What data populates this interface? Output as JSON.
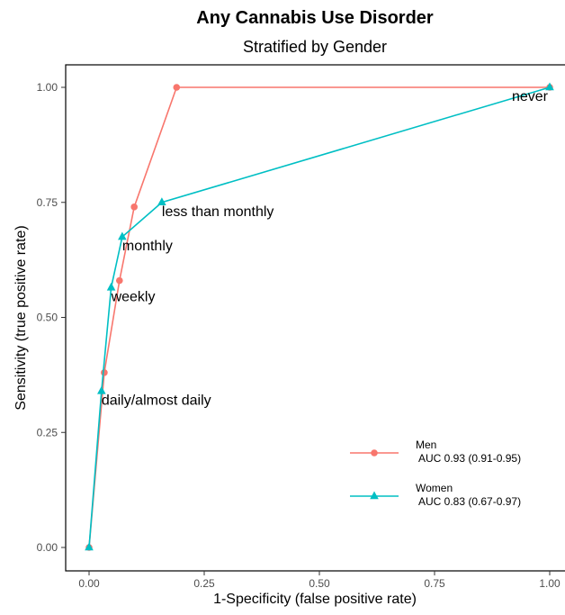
{
  "chart_data": {
    "type": "line",
    "title": "Any Cannabis Use Disorder",
    "subtitle": "Stratified by Gender",
    "xlabel": "1-Specificity (false positive rate)",
    "ylabel": "Sensitivity (true positive rate)",
    "xlim": [
      0,
      1
    ],
    "ylim": [
      0,
      1
    ],
    "x_ticks": [
      "0.00",
      "0.25",
      "0.50",
      "0.75",
      "1.00"
    ],
    "y_ticks": [
      "0.00",
      "0.25",
      "0.50",
      "0.75",
      "1.00"
    ],
    "grid": false,
    "legend_position": "bottom-right",
    "series": [
      {
        "name": "Men",
        "auc": "AUC 0.93 (0.91-0.95)",
        "color": "#F8766D",
        "marker": "circle",
        "points": [
          {
            "x": 0.0,
            "y": 0.0
          },
          {
            "x": 0.033,
            "y": 0.38
          },
          {
            "x": 0.066,
            "y": 0.58
          },
          {
            "x": 0.098,
            "y": 0.74
          },
          {
            "x": 0.19,
            "y": 1.0
          },
          {
            "x": 1.0,
            "y": 1.0
          }
        ]
      },
      {
        "name": "Women",
        "auc": "AUC 0.83 (0.67-0.97)",
        "color": "#00BFC4",
        "marker": "triangle",
        "points": [
          {
            "x": 0.0,
            "y": 0.0
          },
          {
            "x": 0.027,
            "y": 0.34
          },
          {
            "x": 0.048,
            "y": 0.565
          },
          {
            "x": 0.072,
            "y": 0.675
          },
          {
            "x": 0.158,
            "y": 0.75
          },
          {
            "x": 1.0,
            "y": 1.0
          }
        ]
      }
    ],
    "annotations": [
      {
        "text": "daily/almost daily",
        "x": 0.027,
        "y": 0.34
      },
      {
        "text": "weekly",
        "x": 0.048,
        "y": 0.565
      },
      {
        "text": "monthly",
        "x": 0.072,
        "y": 0.675
      },
      {
        "text": "less than monthly",
        "x": 0.158,
        "y": 0.75
      },
      {
        "text": "never",
        "x": 1.0,
        "y": 1.0
      }
    ]
  }
}
